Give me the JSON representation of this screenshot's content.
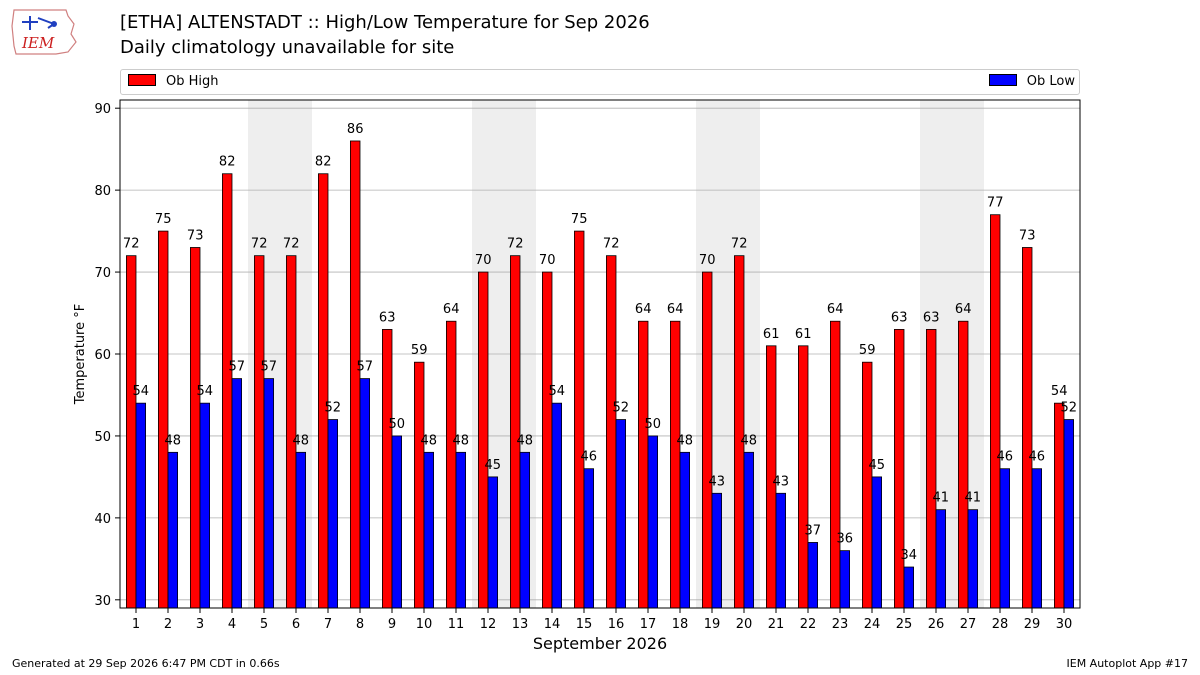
{
  "header": {
    "title": "[ETHA] ALTENSTADT :: High/Low Temperature for Sep 2026",
    "subtitle": "Daily climatology unavailable for site",
    "logo_text": "IEM"
  },
  "footer": {
    "left": "Generated at 29 Sep 2026 6:47 PM CDT in 0.66s",
    "right": "IEM Autoplot App #17"
  },
  "colors": {
    "high": "#ff0000",
    "low": "#0000ff",
    "weekend_band": "#eeeeee",
    "grid": "#b0b0b0"
  },
  "chart_data": {
    "type": "bar",
    "xlabel": "September 2026",
    "ylabel": "Temperature °F",
    "ylim": [
      29,
      91
    ],
    "yticks": [
      30,
      40,
      50,
      60,
      70,
      80,
      90
    ],
    "grid": true,
    "legend_placement": "top",
    "categories": [
      "1",
      "2",
      "3",
      "4",
      "5",
      "6",
      "7",
      "8",
      "9",
      "10",
      "11",
      "12",
      "13",
      "14",
      "15",
      "16",
      "17",
      "18",
      "19",
      "20",
      "21",
      "22",
      "23",
      "24",
      "25",
      "26",
      "27",
      "28",
      "29",
      "30"
    ],
    "series": [
      {
        "name": "Ob High",
        "color": "#ff0000",
        "values": [
          72,
          75,
          73,
          82,
          72,
          72,
          82,
          86,
          63,
          59,
          64,
          70,
          72,
          70,
          75,
          72,
          64,
          64,
          70,
          72,
          61,
          61,
          64,
          59,
          63,
          63,
          64,
          77,
          73,
          54
        ]
      },
      {
        "name": "Ob Low",
        "color": "#0000ff",
        "values": [
          54,
          48,
          54,
          57,
          57,
          48,
          52,
          57,
          50,
          48,
          48,
          45,
          48,
          54,
          46,
          52,
          50,
          48,
          43,
          48,
          43,
          37,
          36,
          45,
          34,
          41,
          41,
          46,
          46,
          52
        ]
      }
    ],
    "shaded_days": [
      5,
      6,
      12,
      13,
      19,
      20,
      26,
      27
    ]
  }
}
